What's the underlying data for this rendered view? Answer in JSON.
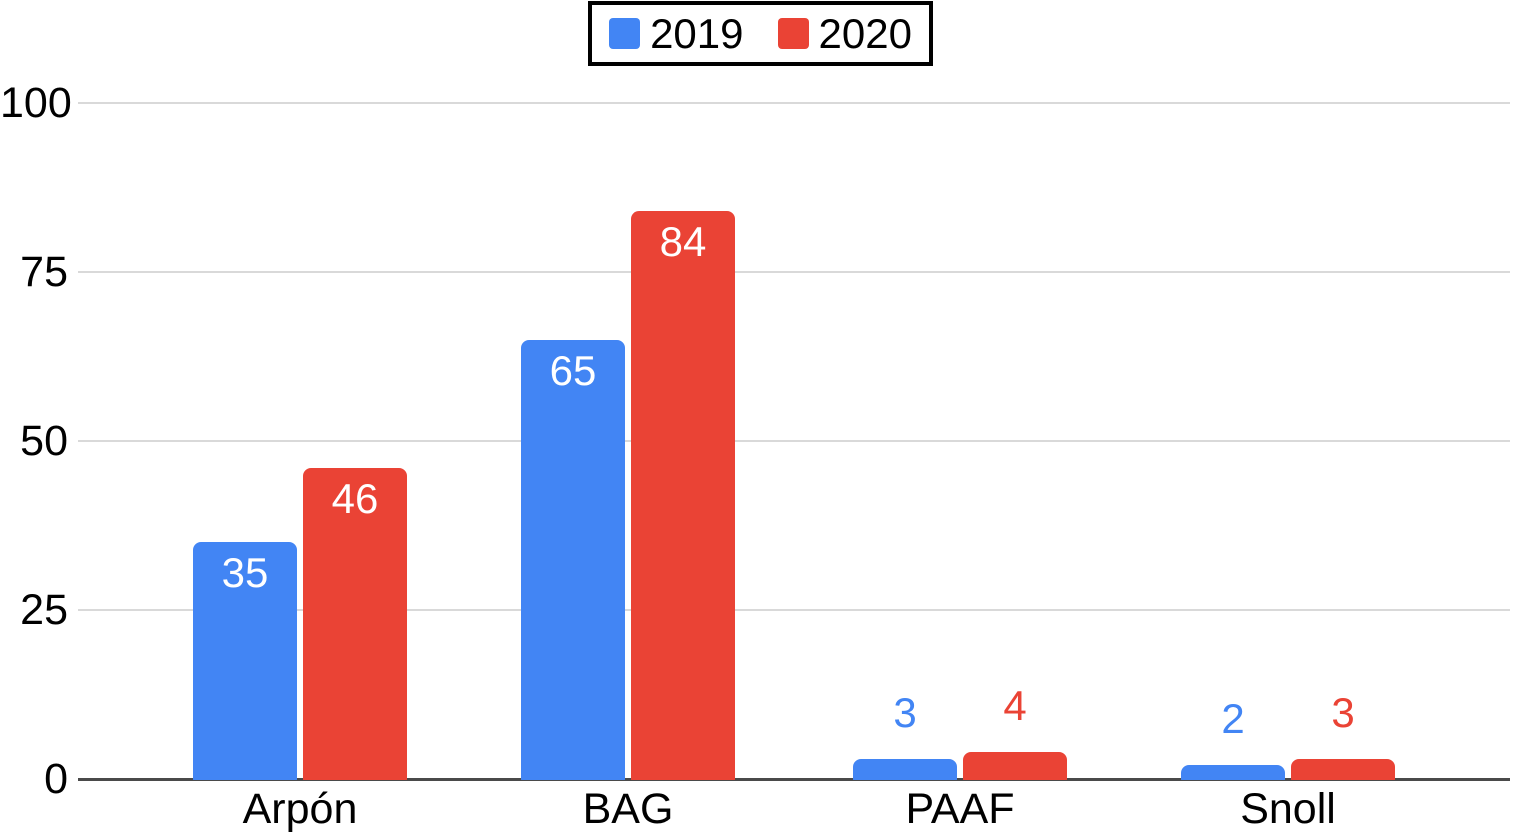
{
  "chart_data": {
    "type": "bar",
    "title": "",
    "xlabel": "",
    "ylabel": "",
    "categories": [
      "Arpón",
      "BAG",
      "PAAF",
      "Snoll"
    ],
    "series": [
      {
        "name": "2019",
        "color": "#4285F4",
        "values": [
          35,
          65,
          3,
          2
        ]
      },
      {
        "name": "2020",
        "color": "#EA4335",
        "values": [
          46,
          84,
          4,
          3
        ]
      }
    ],
    "ylim": [
      0,
      100
    ],
    "yticks": [
      0,
      25,
      50,
      75,
      100
    ],
    "grid": true,
    "legend_position": "top-center",
    "data_labels": "inside-top for tall bars (white), above bar in series color for short bars",
    "colors": {
      "gridline": "#d9d9d9",
      "axis_baseline": "#4a4a4a",
      "tick_text": "#000000",
      "category_text": "#000000",
      "inside_label_text": "#ffffff",
      "legend_border": "#000000",
      "background": "#ffffff"
    }
  }
}
